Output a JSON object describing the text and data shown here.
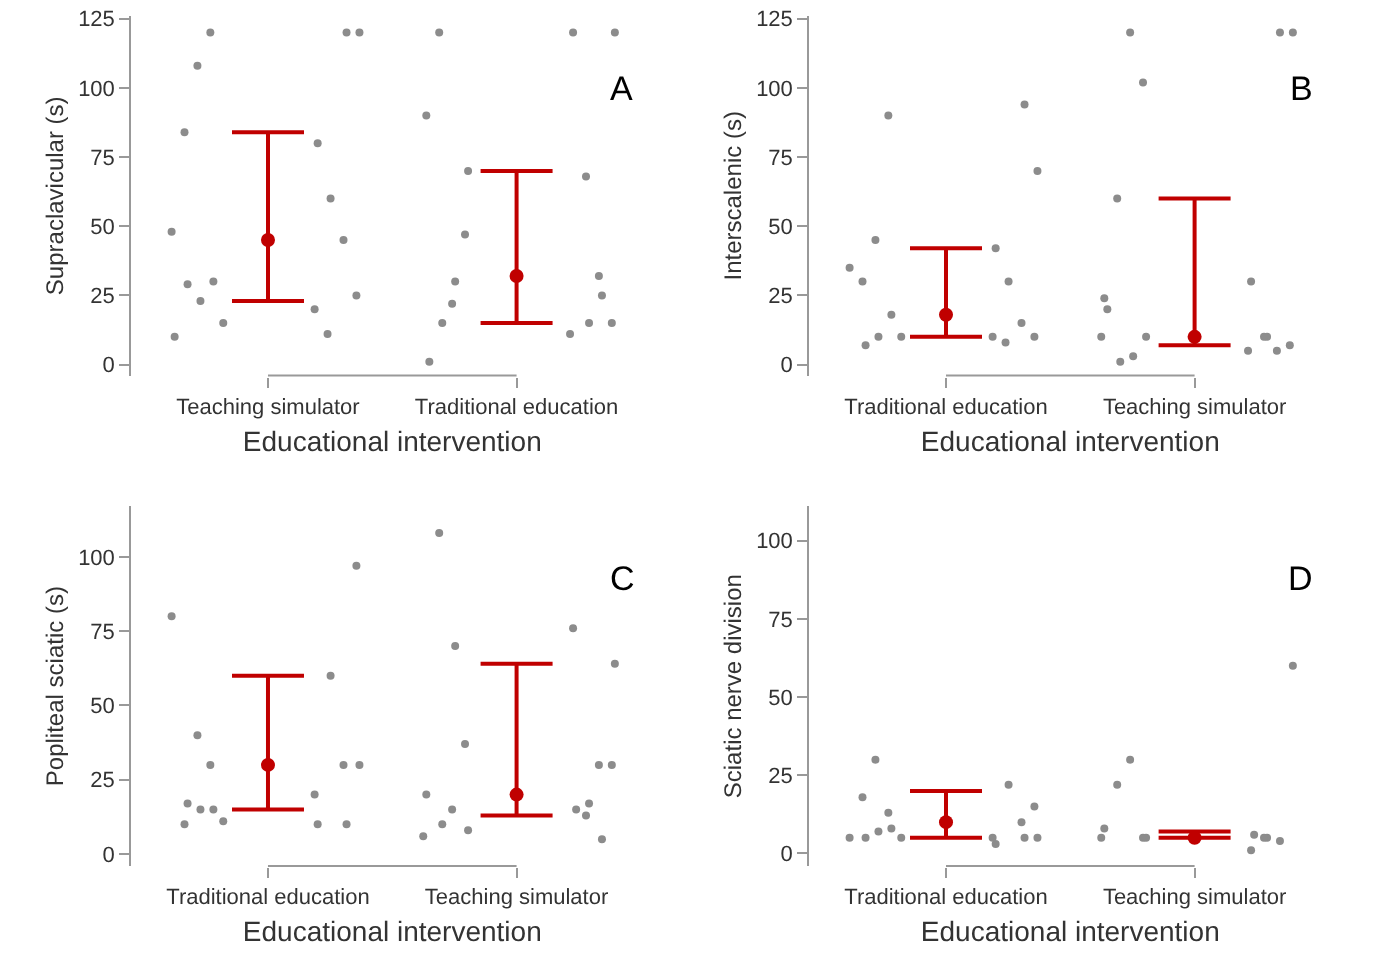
{
  "chart_data": [
    {
      "type": "scatter",
      "xlabel": "Educational intervention",
      "ylabel": "Supraclavicular (s)",
      "annotations": [
        "A"
      ],
      "categories": [
        "Teaching simulator",
        "Traditional education"
      ],
      "ylim": [
        -4,
        126
      ],
      "yticks": [
        0,
        25,
        50,
        75,
        100,
        125
      ],
      "marker": "circle",
      "series": [
        {
          "color": "#8c8c8c",
          "x": [
            "Teaching simulator",
            "Teaching simulator",
            "Teaching simulator",
            "Teaching simulator",
            "Teaching simulator",
            "Teaching simulator",
            "Teaching simulator",
            "Teaching simulator",
            "Teaching simulator",
            "Teaching simulator",
            "Teaching simulator",
            "Teaching simulator",
            "Teaching simulator",
            "Teaching simulator",
            "Teaching simulator",
            "Teaching simulator",
            "Teaching simulator",
            "Traditional education",
            "Traditional education",
            "Traditional education",
            "Traditional education",
            "Traditional education",
            "Traditional education",
            "Traditional education",
            "Traditional education",
            "Traditional education",
            "Traditional education",
            "Traditional education",
            "Traditional education",
            "Traditional education",
            "Traditional education",
            "Traditional education",
            "Traditional education"
          ],
          "values": [
            15,
            120,
            120,
            120,
            108,
            80,
            84,
            60,
            48,
            45,
            30,
            25,
            23,
            20,
            29,
            11,
            10,
            15,
            47,
            25,
            22,
            120,
            120,
            120,
            90,
            68,
            70,
            32,
            30,
            15,
            15,
            11,
            1
          ]
        },
        {
          "color": "#c00000",
          "values": [
            45,
            32
          ],
          "errors": [
            [
              23,
              84
            ],
            [
              15,
              70
            ]
          ]
        }
      ]
    },
    {
      "type": "scatter",
      "xlabel": "Educational intervention",
      "ylabel": "Interscalenic (s)",
      "annotations": [
        "B"
      ],
      "categories": [
        "Traditional education",
        "Teaching simulator"
      ],
      "ylim": [
        -4,
        126
      ],
      "yticks": [
        0,
        25,
        50,
        75,
        100,
        125
      ],
      "marker": "circle",
      "series": [
        {
          "color": "#8c8c8c",
          "x": [
            "Traditional education",
            "Traditional education",
            "Traditional education",
            "Traditional education",
            "Traditional education",
            "Traditional education",
            "Traditional education",
            "Traditional education",
            "Traditional education",
            "Traditional education",
            "Traditional education",
            "Traditional education",
            "Traditional education",
            "Traditional education",
            "Traditional education",
            "Traditional education",
            "Teaching simulator",
            "Teaching simulator",
            "Teaching simulator",
            "Teaching simulator",
            "Teaching simulator",
            "Teaching simulator",
            "Teaching simulator",
            "Teaching simulator",
            "Teaching simulator",
            "Teaching simulator",
            "Teaching simulator",
            "Teaching simulator",
            "Teaching simulator",
            "Teaching simulator",
            "Teaching simulator",
            "Teaching simulator",
            "Teaching simulator"
          ],
          "values": [
            10,
            94,
            90,
            70,
            45,
            42,
            30,
            30,
            35,
            15,
            18,
            10,
            10,
            10,
            7,
            8,
            10,
            10,
            102,
            120,
            120,
            120,
            60,
            30,
            24,
            10,
            10,
            5,
            3,
            7,
            1,
            5,
            20
          ]
        },
        {
          "color": "#c00000",
          "values": [
            18,
            10
          ],
          "errors": [
            [
              10,
              42
            ],
            [
              7,
              60
            ]
          ]
        }
      ]
    },
    {
      "type": "scatter",
      "xlabel": "Educational intervention",
      "ylabel": "Popliteal sciatic (s)",
      "annotations": [
        "C"
      ],
      "categories": [
        "Traditional education",
        "Teaching simulator"
      ],
      "ylim": [
        -4,
        117
      ],
      "yticks": [
        0,
        25,
        50,
        75,
        100
      ],
      "marker": "circle",
      "series": [
        {
          "color": "#8c8c8c",
          "x": [
            "Traditional education",
            "Traditional education",
            "Traditional education",
            "Traditional education",
            "Traditional education",
            "Traditional education",
            "Traditional education",
            "Traditional education",
            "Traditional education",
            "Traditional education",
            "Traditional education",
            "Traditional education",
            "Traditional education",
            "Traditional education",
            "Traditional education",
            "Teaching simulator",
            "Teaching simulator",
            "Teaching simulator",
            "Teaching simulator",
            "Teaching simulator",
            "Teaching simulator",
            "Teaching simulator",
            "Teaching simulator",
            "Teaching simulator",
            "Teaching simulator",
            "Teaching simulator",
            "Teaching simulator",
            "Teaching simulator",
            "Teaching simulator",
            "Teaching simulator",
            "Teaching simulator"
          ],
          "values": [
            11,
            10,
            30,
            30,
            40,
            10,
            10,
            60,
            80,
            30,
            15,
            97,
            15,
            20,
            17,
            15,
            6,
            17,
            37,
            5,
            15,
            64,
            108,
            76,
            20,
            13,
            8,
            30,
            70,
            30,
            10
          ]
        },
        {
          "color": "#c00000",
          "values": [
            30,
            20
          ],
          "errors": [
            [
              15,
              60
            ],
            [
              13,
              64
            ]
          ]
        }
      ]
    },
    {
      "type": "scatter",
      "xlabel": "Educational intervention",
      "ylabel": "Sciatic nerve division",
      "annotations": [
        "D"
      ],
      "categories": [
        "Traditional education",
        "Teaching simulator"
      ],
      "ylim": [
        -4,
        111
      ],
      "yticks": [
        0,
        25,
        50,
        75,
        100
      ],
      "marker": "circle",
      "series": [
        {
          "color": "#8c8c8c",
          "x": [
            "Traditional education",
            "Traditional education",
            "Traditional education",
            "Traditional education",
            "Traditional education",
            "Traditional education",
            "Traditional education",
            "Traditional education",
            "Traditional education",
            "Traditional education",
            "Traditional education",
            "Traditional education",
            "Traditional education",
            "Traditional education",
            "Traditional education",
            "Teaching simulator",
            "Teaching simulator",
            "Teaching simulator",
            "Teaching simulator",
            "Teaching simulator",
            "Teaching simulator",
            "Teaching simulator",
            "Teaching simulator",
            "Teaching simulator",
            "Teaching simulator",
            "Teaching simulator",
            "Teaching simulator"
          ],
          "values": [
            5,
            5,
            13,
            5,
            30,
            3,
            18,
            22,
            5,
            10,
            8,
            15,
            7,
            5,
            5,
            6,
            5,
            5,
            5,
            4,
            30,
            60,
            22,
            1,
            8,
            5,
            5
          ]
        },
        {
          "color": "#c00000",
          "values": [
            10,
            5
          ],
          "errors": [
            [
              5,
              20
            ],
            [
              5,
              7
            ]
          ]
        }
      ]
    }
  ]
}
